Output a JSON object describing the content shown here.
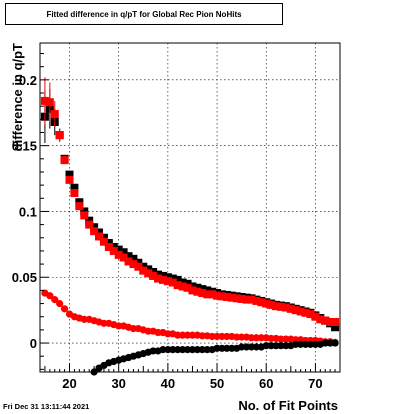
{
  "chart_data": {
    "type": "scatter",
    "title": "Fitted difference in q/pT for Global Rec Pion NoHits",
    "xlabel": "No. of Fit Points",
    "ylabel": "difference in q/pT",
    "xlim": [
      14,
      75
    ],
    "ylim": [
      -0.022,
      0.228
    ],
    "x_ticks": [
      20,
      30,
      40,
      50,
      60,
      70
    ],
    "y_ticks": [
      0,
      0.05,
      0.1,
      0.15,
      0.2
    ],
    "y_tick_labels": [
      "0",
      "0.05",
      "0.1",
      "0.15",
      "0.2"
    ],
    "grid": true,
    "series": [
      {
        "marker": "square",
        "color": "#000000",
        "x": [
          15,
          16,
          17,
          18,
          19,
          20,
          21,
          22,
          23,
          24,
          25,
          26,
          27,
          28,
          29,
          30,
          31,
          32,
          33,
          34,
          35,
          36,
          37,
          38,
          39,
          40,
          41,
          42,
          43,
          44,
          45,
          46,
          47,
          48,
          49,
          50,
          51,
          52,
          53,
          54,
          55,
          56,
          57,
          58,
          59,
          60,
          61,
          62,
          63,
          64,
          65,
          66,
          67,
          68,
          69,
          70,
          71,
          72,
          73,
          74
        ],
        "y": [
          0.172,
          0.178,
          0.168,
          0.158,
          0.14,
          0.128,
          0.118,
          0.107,
          0.1,
          0.093,
          0.088,
          0.084,
          0.08,
          0.076,
          0.073,
          0.071,
          0.069,
          0.066,
          0.064,
          0.061,
          0.058,
          0.056,
          0.054,
          0.052,
          0.051,
          0.05,
          0.049,
          0.048,
          0.046,
          0.045,
          0.043,
          0.042,
          0.041,
          0.04,
          0.039,
          0.038,
          0.037,
          0.0365,
          0.036,
          0.0355,
          0.035,
          0.0345,
          0.034,
          0.033,
          0.032,
          0.031,
          0.03,
          0.029,
          0.0285,
          0.028,
          0.027,
          0.026,
          0.025,
          0.024,
          0.023,
          0.021,
          0.019,
          0.017,
          0.015,
          0.012
        ],
        "yerr": [
          0.02,
          0.015,
          0.01,
          0.005,
          0.003,
          0.002,
          0,
          0,
          0,
          0,
          0,
          0,
          0,
          0,
          0,
          0,
          0,
          0,
          0,
          0,
          0,
          0,
          0,
          0,
          0,
          0,
          0,
          0,
          0,
          0,
          0,
          0,
          0,
          0,
          0,
          0,
          0,
          0,
          0,
          0,
          0,
          0,
          0,
          0,
          0,
          0,
          0,
          0,
          0,
          0,
          0,
          0,
          0,
          0,
          0,
          0,
          0,
          0,
          0,
          0
        ]
      },
      {
        "marker": "square",
        "color": "#ff0000",
        "x": [
          15,
          16,
          17,
          18,
          19,
          20,
          21,
          22,
          23,
          24,
          25,
          26,
          27,
          28,
          29,
          30,
          31,
          32,
          33,
          34,
          35,
          36,
          37,
          38,
          39,
          40,
          41,
          42,
          43,
          44,
          45,
          46,
          47,
          48,
          49,
          50,
          51,
          52,
          53,
          54,
          55,
          56,
          57,
          58,
          59,
          60,
          61,
          62,
          63,
          64,
          65,
          66,
          67,
          68,
          69,
          70,
          71,
          72,
          73,
          74
        ],
        "y": [
          0.184,
          0.183,
          0.174,
          0.158,
          0.139,
          0.124,
          0.114,
          0.104,
          0.097,
          0.09,
          0.085,
          0.081,
          0.077,
          0.073,
          0.07,
          0.067,
          0.065,
          0.062,
          0.06,
          0.058,
          0.055,
          0.053,
          0.051,
          0.049,
          0.048,
          0.047,
          0.046,
          0.044,
          0.043,
          0.042,
          0.04,
          0.039,
          0.038,
          0.037,
          0.037,
          0.036,
          0.0355,
          0.035,
          0.0345,
          0.034,
          0.0335,
          0.033,
          0.033,
          0.032,
          0.031,
          0.03,
          0.029,
          0.028,
          0.0275,
          0.027,
          0.026,
          0.025,
          0.024,
          0.023,
          0.022,
          0.02,
          0.018,
          0.017,
          0.016,
          0.016
        ],
        "yerr": [
          0.018,
          0.015,
          0.01,
          0.005,
          0.003,
          0.002,
          0,
          0,
          0,
          0,
          0,
          0,
          0,
          0,
          0,
          0,
          0,
          0,
          0,
          0,
          0,
          0,
          0,
          0,
          0,
          0,
          0,
          0,
          0,
          0,
          0,
          0,
          0,
          0,
          0,
          0,
          0,
          0,
          0,
          0,
          0,
          0,
          0,
          0,
          0,
          0,
          0,
          0,
          0,
          0,
          0,
          0,
          0,
          0,
          0,
          0,
          0,
          0,
          0,
          0
        ]
      },
      {
        "marker": "circle",
        "color": "#ff0000",
        "x": [
          15,
          16,
          17,
          18,
          19,
          20,
          21,
          22,
          23,
          24,
          25,
          26,
          27,
          28,
          29,
          30,
          31,
          32,
          33,
          34,
          35,
          36,
          37,
          38,
          39,
          40,
          41,
          42,
          43,
          44,
          45,
          46,
          47,
          48,
          49,
          50,
          51,
          52,
          53,
          54,
          55,
          56,
          57,
          58,
          59,
          60,
          61,
          62,
          63,
          64,
          65,
          66,
          67,
          68,
          69,
          70,
          71,
          72,
          73,
          74
        ],
        "y": [
          0.038,
          0.036,
          0.033,
          0.03,
          0.026,
          0.022,
          0.02,
          0.019,
          0.018,
          0.018,
          0.017,
          0.016,
          0.015,
          0.015,
          0.014,
          0.013,
          0.013,
          0.012,
          0.011,
          0.011,
          0.01,
          0.009,
          0.009,
          0.008,
          0.008,
          0.007,
          0.007,
          0.006,
          0.006,
          0.006,
          0.006,
          0.006,
          0.0055,
          0.0055,
          0.005,
          0.005,
          0.005,
          0.005,
          0.005,
          0.0045,
          0.0045,
          0.0045,
          0.004,
          0.004,
          0.004,
          0.004,
          0.0035,
          0.0035,
          0.003,
          0.003,
          0.003,
          0.0025,
          0.0025,
          0.002,
          0.002,
          0.002,
          0.0015,
          0.001,
          0.001,
          0.0005
        ]
      },
      {
        "marker": "circle",
        "color": "#000000",
        "x": [
          25,
          26,
          27,
          28,
          29,
          30,
          31,
          32,
          33,
          34,
          35,
          36,
          37,
          38,
          39,
          40,
          41,
          42,
          43,
          44,
          45,
          46,
          47,
          48,
          49,
          50,
          51,
          52,
          53,
          54,
          55,
          56,
          57,
          58,
          59,
          60,
          61,
          62,
          63,
          64,
          65,
          66,
          67,
          68,
          69,
          70,
          71,
          72,
          73,
          74
        ],
        "y": [
          -0.022,
          -0.019,
          -0.017,
          -0.015,
          -0.014,
          -0.013,
          -0.012,
          -0.011,
          -0.01,
          -0.009,
          -0.008,
          -0.007,
          -0.006,
          -0.006,
          -0.005,
          -0.005,
          -0.005,
          -0.005,
          -0.005,
          -0.005,
          -0.005,
          -0.005,
          -0.005,
          -0.005,
          -0.005,
          -0.004,
          -0.004,
          -0.004,
          -0.004,
          -0.004,
          -0.003,
          -0.003,
          -0.003,
          -0.003,
          -0.003,
          -0.002,
          -0.002,
          -0.002,
          -0.002,
          -0.002,
          -0.002,
          -0.001,
          -0.001,
          -0.001,
          -0.001,
          -0.001,
          -0.001,
          0,
          0,
          0
        ]
      }
    ]
  },
  "footer": {
    "date": "Fri Dec 31 13:11:44 2021"
  }
}
